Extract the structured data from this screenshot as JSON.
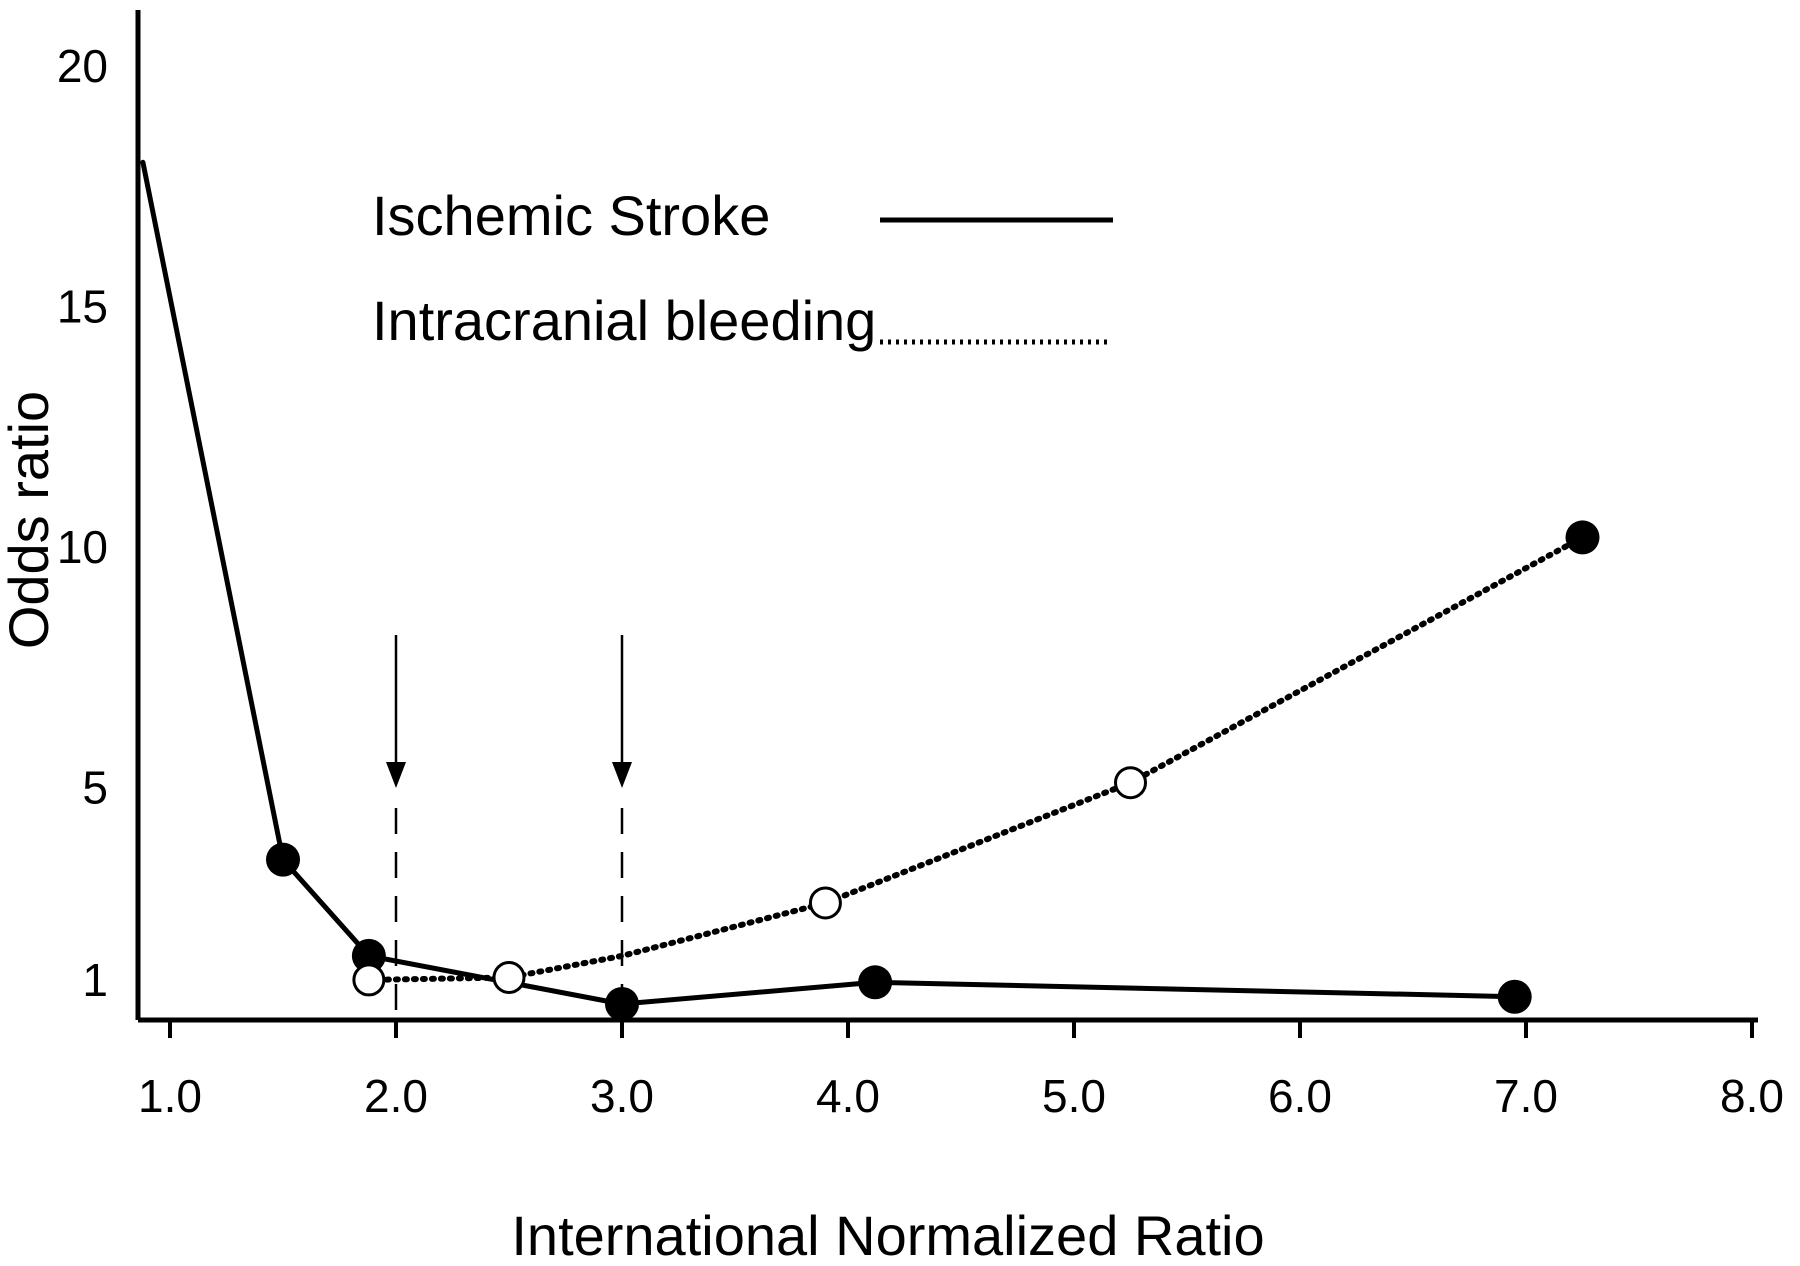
{
  "chart_data": {
    "type": "line",
    "xlabel": "International Normalized Ratio",
    "ylabel": "Odds ratio",
    "xlim": [
      0.85,
      8.0
    ],
    "ylim": [
      0,
      21
    ],
    "x_ticks": [
      "1.0",
      "2.0",
      "3.0",
      "4.0",
      "5.0",
      "6.0",
      "7.0",
      "8.0"
    ],
    "x_tick_values": [
      1,
      2,
      3,
      4,
      5,
      6,
      7,
      8
    ],
    "y_ticks": [
      "1",
      "5",
      "10",
      "15",
      "20"
    ],
    "y_tick_values": [
      1,
      5,
      10,
      15,
      20
    ],
    "reference_arrows_x": [
      2.0,
      3.0
    ],
    "legend": {
      "position": "top-center"
    },
    "series": [
      {
        "name": "Ischemic Stroke",
        "style": "solid",
        "color": "#000000",
        "x": [
          0.88,
          1.5,
          1.88,
          3.0,
          4.12,
          6.95
        ],
        "y": [
          18.0,
          3.5,
          1.5,
          0.5,
          0.95,
          0.65
        ],
        "markers": [
          "none",
          "filled",
          "filled",
          "filled",
          "filled",
          "filled"
        ]
      },
      {
        "name": "Intracranial bleeding",
        "style": "dotted",
        "color": "#000000",
        "x": [
          1.88,
          2.5,
          3.0,
          3.9,
          5.25,
          7.25
        ],
        "y": [
          1.0,
          1.05,
          1.5,
          2.6,
          5.1,
          10.2
        ],
        "markers": [
          "open",
          "open",
          "none",
          "open",
          "open",
          "filled"
        ]
      }
    ]
  }
}
